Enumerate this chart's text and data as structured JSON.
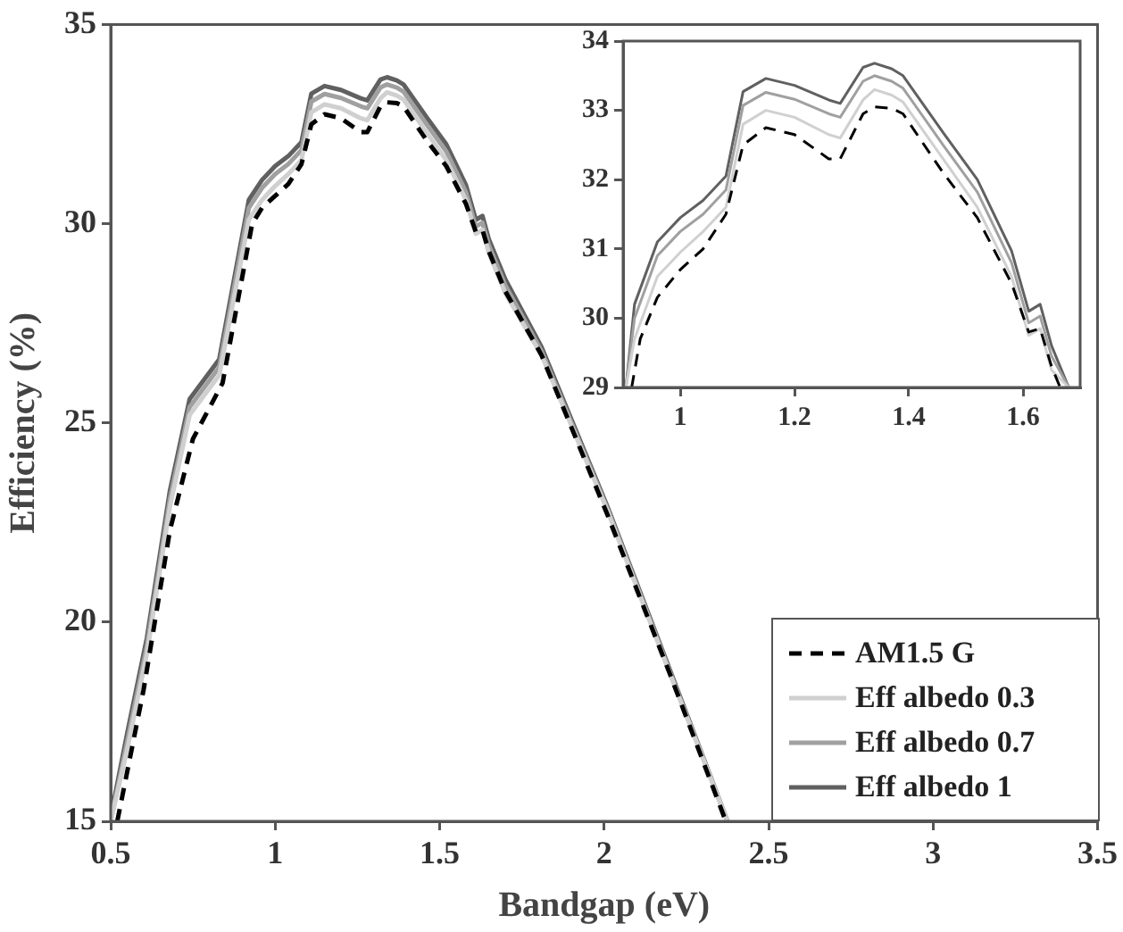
{
  "chart_data": [
    {
      "type": "line",
      "xlabel": "Bandgap (eV)",
      "ylabel": "Efficiency (%)",
      "xlim": [
        0.5,
        3.5
      ],
      "ylim": [
        15,
        35
      ],
      "xticks": [
        0.5,
        1,
        1.5,
        2,
        2.5,
        3,
        3.5
      ],
      "yticks": [
        15,
        20,
        25,
        30,
        35
      ],
      "legend": "bottom right",
      "marker": "none",
      "x": [
        0.5,
        0.55,
        0.61,
        0.68,
        0.74,
        0.83,
        0.92,
        0.96,
        1.0,
        1.04,
        1.08,
        1.11,
        1.15,
        1.2,
        1.26,
        1.28,
        1.32,
        1.34,
        1.37,
        1.39,
        1.46,
        1.52,
        1.58,
        1.61,
        1.63,
        1.65,
        1.7,
        1.81,
        2.01,
        2.2,
        2.375
      ],
      "series": [
        {
          "name": "AM1.5 G",
          "color": "#000000",
          "line_style": "dashed",
          "x": [
            0.52,
            0.6,
            0.68,
            0.75,
            0.84,
            0.93,
            0.96,
            1.0,
            1.04,
            1.08,
            1.11,
            1.15,
            1.2,
            1.26,
            1.28,
            1.32,
            1.34,
            1.37,
            1.39,
            1.46,
            1.52,
            1.58,
            1.61,
            1.63,
            1.65,
            1.7,
            1.81,
            2.01,
            2.2,
            2.37
          ],
          "values": [
            15.0,
            18.3,
            22.3,
            24.6,
            26.0,
            30.0,
            30.4,
            30.7,
            31.0,
            31.5,
            32.5,
            32.75,
            32.65,
            32.3,
            32.3,
            32.95,
            33.05,
            33.03,
            32.95,
            32.1,
            31.45,
            30.5,
            29.8,
            29.85,
            29.3,
            28.3,
            26.7,
            22.7,
            18.7,
            15.0
          ]
        },
        {
          "name": "Eff albedo 0.3",
          "color": "#d0d0d0",
          "line_style": "solid",
          "values": [
            15.0,
            16.8,
            19.2,
            22.9,
            25.2,
            26.2,
            30.1,
            30.6,
            30.95,
            31.25,
            31.6,
            32.8,
            33.0,
            32.9,
            32.65,
            32.6,
            33.15,
            33.3,
            33.22,
            33.12,
            32.3,
            31.6,
            30.6,
            29.75,
            29.85,
            29.25,
            28.25,
            26.7,
            22.8,
            18.7,
            15.0
          ]
        },
        {
          "name": "Eff albedo 0.7",
          "color": "#a0a0a0",
          "line_style": "solid",
          "values": [
            15.0,
            17.0,
            19.4,
            23.1,
            25.4,
            26.4,
            30.4,
            30.9,
            31.25,
            31.5,
            31.85,
            33.07,
            33.26,
            33.16,
            32.95,
            32.9,
            33.42,
            33.5,
            33.42,
            33.32,
            32.5,
            31.82,
            30.8,
            29.93,
            30.03,
            29.45,
            28.45,
            26.8,
            22.85,
            18.75,
            15.0
          ]
        },
        {
          "name": "Eff albedo 1",
          "color": "#606060",
          "line_style": "solid",
          "values": [
            15.1,
            17.2,
            19.6,
            23.3,
            25.6,
            26.6,
            30.6,
            31.1,
            31.45,
            31.7,
            32.05,
            33.27,
            33.46,
            33.36,
            33.15,
            33.1,
            33.62,
            33.68,
            33.6,
            33.5,
            32.68,
            32.0,
            30.97,
            30.1,
            30.2,
            29.6,
            28.6,
            26.9,
            22.9,
            18.8,
            15.0
          ]
        }
      ]
    },
    {
      "type": "line",
      "xlim": [
        0.9,
        1.7
      ],
      "ylim": [
        29,
        34
      ],
      "xticks": [
        1,
        1.2,
        1.4,
        1.6
      ],
      "yticks": [
        29,
        30,
        31,
        32,
        33,
        34
      ],
      "marker": "none",
      "x": [
        0.905,
        0.92,
        0.96,
        1.0,
        1.04,
        1.08,
        1.11,
        1.15,
        1.2,
        1.26,
        1.28,
        1.32,
        1.34,
        1.37,
        1.39,
        1.46,
        1.52,
        1.58,
        1.61,
        1.63,
        1.65,
        1.68
      ],
      "series": [
        {
          "color": "#000000",
          "line_style": "dashed",
          "x": [
            0.915,
            0.93,
            0.96,
            1.0,
            1.04,
            1.08,
            1.11,
            1.15,
            1.2,
            1.26,
            1.28,
            1.32,
            1.34,
            1.37,
            1.39,
            1.46,
            1.52,
            1.58,
            1.61,
            1.63,
            1.65,
            1.665
          ],
          "values": [
            29.0,
            29.7,
            30.3,
            30.7,
            31.0,
            31.5,
            32.5,
            32.75,
            32.65,
            32.3,
            32.3,
            32.95,
            33.05,
            33.03,
            32.95,
            32.1,
            31.45,
            30.5,
            29.8,
            29.85,
            29.3,
            29.0
          ]
        },
        {
          "color": "#d0d0d0",
          "line_style": "solid",
          "values": [
            29.0,
            29.7,
            30.6,
            30.95,
            31.25,
            31.6,
            32.8,
            33.0,
            32.9,
            32.65,
            32.6,
            33.15,
            33.3,
            33.22,
            33.12,
            32.3,
            31.6,
            30.6,
            29.75,
            29.85,
            29.25,
            29.0
          ]
        },
        {
          "color": "#a0a0a0",
          "line_style": "solid",
          "values": [
            29.0,
            30.0,
            30.9,
            31.25,
            31.5,
            31.85,
            33.07,
            33.26,
            33.16,
            32.95,
            32.9,
            33.42,
            33.5,
            33.42,
            33.32,
            32.5,
            31.82,
            30.8,
            29.93,
            30.03,
            29.45,
            29.0
          ]
        },
        {
          "color": "#606060",
          "line_style": "solid",
          "values": [
            29.0,
            30.2,
            31.1,
            31.45,
            31.7,
            32.05,
            33.27,
            33.46,
            33.36,
            33.15,
            33.1,
            33.62,
            33.68,
            33.6,
            33.5,
            32.68,
            32.0,
            30.97,
            30.1,
            30.2,
            29.6,
            29.0
          ]
        }
      ]
    }
  ]
}
